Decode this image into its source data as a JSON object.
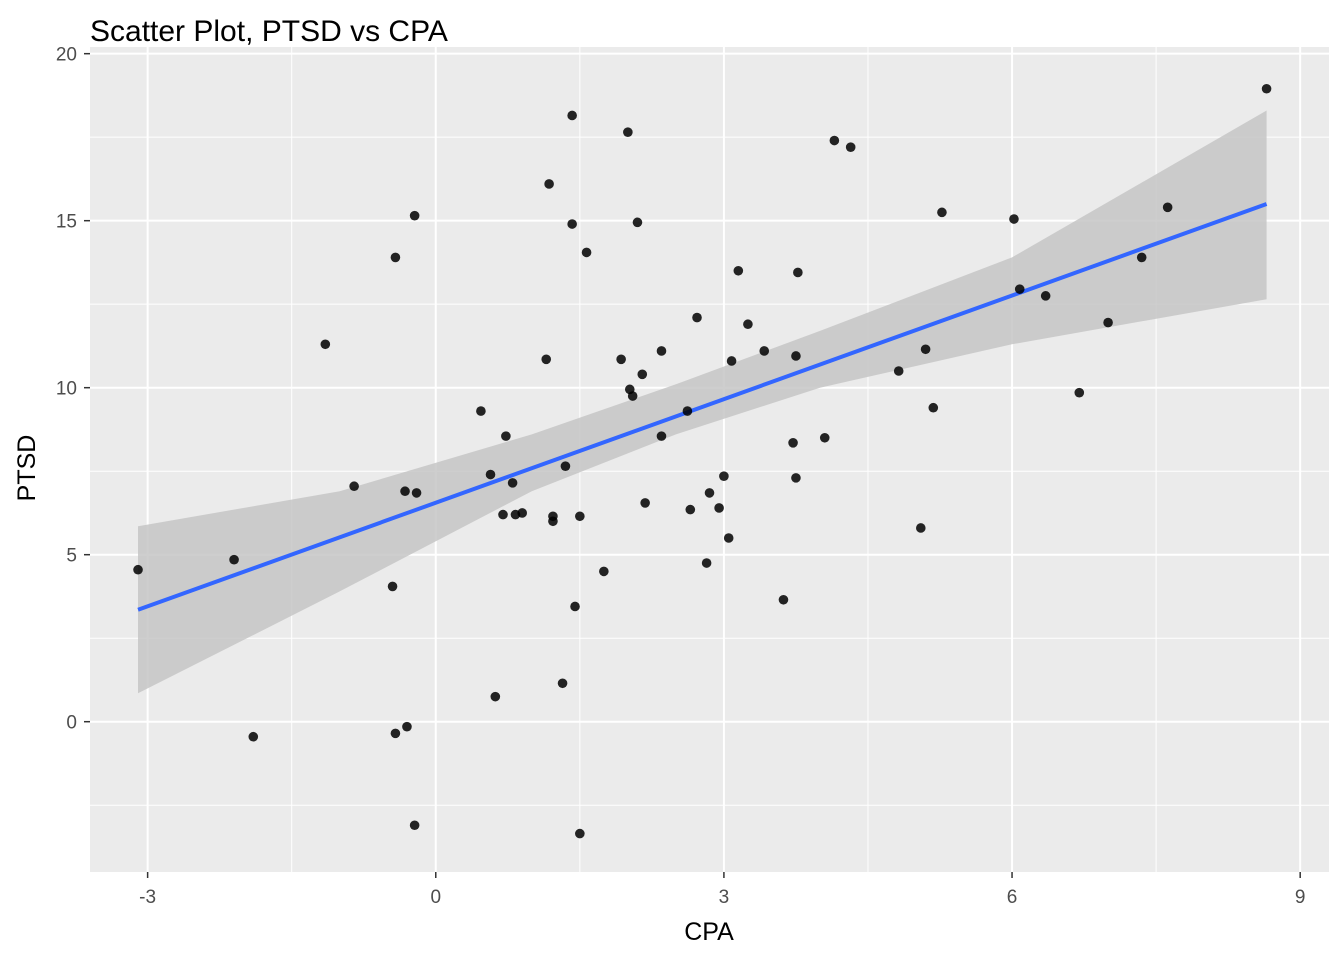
{
  "chart_data": {
    "type": "scatter",
    "title": "Scatter Plot, PTSD vs CPA",
    "xlabel": "CPA",
    "ylabel": "PTSD",
    "xlim": [
      -3.6,
      9.3
    ],
    "ylim": [
      -4.5,
      20.2
    ],
    "x_ticks": [
      -3,
      0,
      3,
      6,
      9
    ],
    "y_ticks": [
      0,
      5,
      10,
      15,
      20
    ],
    "grid": true,
    "legend": "none",
    "colors": {
      "panel": "#ebebeb",
      "grid": "#ffffff",
      "point": "#000000",
      "fit_line": "#3366ff",
      "confidence_band": "#c6c6c6",
      "tick_text": "#4d4d4d"
    },
    "fit_line": {
      "x": [
        -3.1,
        8.65
      ],
      "y": [
        3.35,
        15.5
      ]
    },
    "confidence_band": {
      "x": [
        -3.1,
        -1.0,
        1.0,
        2.5,
        4.0,
        6.0,
        8.65
      ],
      "upper": [
        5.85,
        6.9,
        8.6,
        10.1,
        11.7,
        13.9,
        18.3
      ],
      "lower": [
        0.85,
        3.9,
        6.9,
        8.6,
        10.0,
        11.3,
        12.65
      ]
    },
    "points": [
      {
        "x": -3.1,
        "y": 4.55
      },
      {
        "x": -2.1,
        "y": 4.85
      },
      {
        "x": -1.9,
        "y": -0.45
      },
      {
        "x": -1.15,
        "y": 11.3
      },
      {
        "x": -0.85,
        "y": 7.05
      },
      {
        "x": -0.45,
        "y": 4.05
      },
      {
        "x": -0.42,
        "y": 13.9
      },
      {
        "x": -0.42,
        "y": -0.35
      },
      {
        "x": -0.32,
        "y": 6.9
      },
      {
        "x": -0.3,
        "y": -0.15
      },
      {
        "x": -0.22,
        "y": 15.15
      },
      {
        "x": -0.22,
        "y": -3.1
      },
      {
        "x": -0.2,
        "y": 6.85
      },
      {
        "x": 0.47,
        "y": 9.3
      },
      {
        "x": 0.57,
        "y": 7.4
      },
      {
        "x": 0.62,
        "y": 0.75
      },
      {
        "x": 0.7,
        "y": 6.2
      },
      {
        "x": 0.73,
        "y": 8.55
      },
      {
        "x": 0.8,
        "y": 7.15
      },
      {
        "x": 0.83,
        "y": 6.2
      },
      {
        "x": 0.9,
        "y": 6.25
      },
      {
        "x": 1.15,
        "y": 10.85
      },
      {
        "x": 1.18,
        "y": 16.1
      },
      {
        "x": 1.22,
        "y": 6.15
      },
      {
        "x": 1.22,
        "y": 6.0
      },
      {
        "x": 1.32,
        "y": 1.15
      },
      {
        "x": 1.35,
        "y": 7.65
      },
      {
        "x": 1.42,
        "y": 18.15
      },
      {
        "x": 1.42,
        "y": 14.9
      },
      {
        "x": 1.45,
        "y": 3.45
      },
      {
        "x": 1.5,
        "y": 6.15
      },
      {
        "x": 1.5,
        "y": -3.35
      },
      {
        "x": 1.57,
        "y": 14.05
      },
      {
        "x": 1.75,
        "y": 4.5
      },
      {
        "x": 1.93,
        "y": 10.85
      },
      {
        "x": 2.0,
        "y": 17.65
      },
      {
        "x": 2.02,
        "y": 9.95
      },
      {
        "x": 2.05,
        "y": 9.75
      },
      {
        "x": 2.1,
        "y": 14.95
      },
      {
        "x": 2.15,
        "y": 10.4
      },
      {
        "x": 2.18,
        "y": 6.55
      },
      {
        "x": 2.35,
        "y": 11.1
      },
      {
        "x": 2.35,
        "y": 8.55
      },
      {
        "x": 2.62,
        "y": 9.3
      },
      {
        "x": 2.65,
        "y": 6.35
      },
      {
        "x": 2.72,
        "y": 12.1
      },
      {
        "x": 2.82,
        "y": 4.75
      },
      {
        "x": 2.85,
        "y": 6.85
      },
      {
        "x": 2.95,
        "y": 6.4
      },
      {
        "x": 3.0,
        "y": 7.35
      },
      {
        "x": 3.05,
        "y": 5.5
      },
      {
        "x": 3.08,
        "y": 10.8
      },
      {
        "x": 3.15,
        "y": 13.5
      },
      {
        "x": 3.25,
        "y": 11.9
      },
      {
        "x": 3.42,
        "y": 11.1
      },
      {
        "x": 3.62,
        "y": 3.65
      },
      {
        "x": 3.72,
        "y": 8.35
      },
      {
        "x": 3.75,
        "y": 7.3
      },
      {
        "x": 3.75,
        "y": 10.95
      },
      {
        "x": 3.77,
        "y": 13.45
      },
      {
        "x": 4.05,
        "y": 8.5
      },
      {
        "x": 4.15,
        "y": 17.4
      },
      {
        "x": 4.32,
        "y": 17.2
      },
      {
        "x": 4.82,
        "y": 10.5
      },
      {
        "x": 5.05,
        "y": 5.8
      },
      {
        "x": 5.1,
        "y": 11.15
      },
      {
        "x": 5.18,
        "y": 9.4
      },
      {
        "x": 5.27,
        "y": 15.25
      },
      {
        "x": 6.02,
        "y": 15.05
      },
      {
        "x": 6.08,
        "y": 12.95
      },
      {
        "x": 6.35,
        "y": 12.75
      },
      {
        "x": 6.7,
        "y": 9.85
      },
      {
        "x": 7.0,
        "y": 11.95
      },
      {
        "x": 7.35,
        "y": 13.9
      },
      {
        "x": 7.62,
        "y": 15.4
      },
      {
        "x": 8.65,
        "y": 18.95
      }
    ]
  }
}
